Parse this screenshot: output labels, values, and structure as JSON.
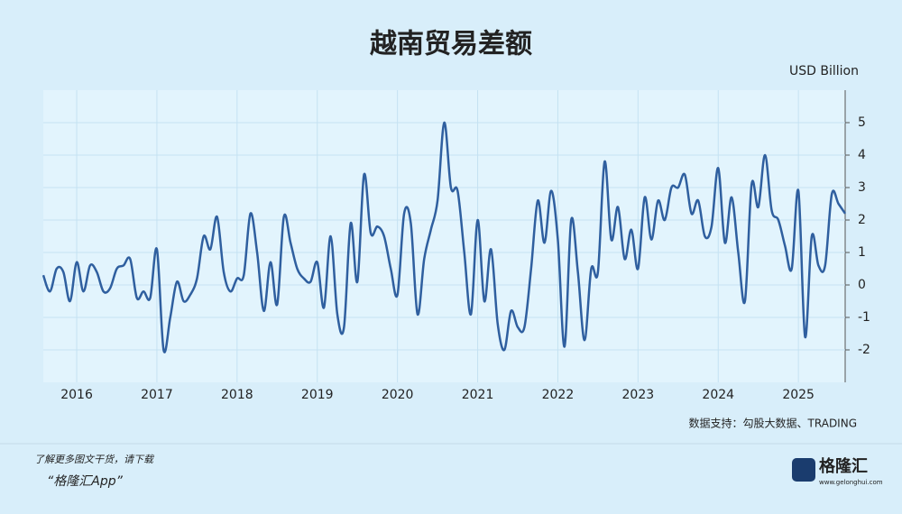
{
  "chart_data": {
    "type": "line",
    "title": "越南贸易差额",
    "y_axis_label": "USD Billion",
    "source": "数据支持：勾股大数据、TRADING",
    "footer_text": "了解更多图文干货，请下载",
    "footer_app": "“格隆汇App”",
    "logo": "格隆汇",
    "logo_url": "www.gelonghui.com",
    "categories": [
      null,
      null,
      null,
      null,
      null,
      "2016",
      null,
      null,
      null,
      null,
      null,
      null,
      null,
      null,
      null,
      null,
      null,
      "2017",
      null,
      null,
      null,
      null,
      null,
      null,
      null,
      null,
      null,
      null,
      null,
      "2018",
      null,
      null,
      null,
      null,
      null,
      null,
      null,
      null,
      null,
      null,
      null,
      "2019",
      null,
      null,
      null,
      null,
      null,
      null,
      null,
      null,
      null,
      null,
      null,
      "2020",
      null,
      null,
      null,
      null,
      null,
      null,
      null,
      null,
      null,
      null,
      null,
      "2021",
      null,
      null,
      null,
      null,
      null,
      null,
      null,
      null,
      null,
      null,
      null,
      "2022",
      null,
      null,
      null,
      null,
      null,
      null,
      null,
      null,
      null,
      null,
      null,
      "2023",
      null,
      null,
      null,
      null,
      null,
      null,
      null,
      null,
      null,
      null,
      null,
      "2024",
      null,
      null,
      null,
      null,
      null,
      null,
      null,
      null,
      null,
      null,
      null,
      "2025",
      null,
      null,
      null,
      null,
      null,
      null,
      null
    ],
    "series": [
      {
        "name": "越南贸易差额",
        "color": "#2f5f9f",
        "values": [
          0.3,
          -0.2,
          0.5,
          0.4,
          -0.5,
          0.7,
          -0.2,
          0.6,
          0.4,
          -0.2,
          -0.1,
          0.5,
          0.6,
          0.8,
          -0.4,
          -0.2,
          -0.4,
          1.1,
          -2.0,
          -1.0,
          0.1,
          -0.5,
          -0.3,
          0.2,
          1.5,
          1.1,
          2.1,
          0.4,
          -0.2,
          0.2,
          0.3,
          2.2,
          1.0,
          -0.8,
          0.7,
          -0.6,
          2.1,
          1.3,
          0.5,
          0.2,
          0.1,
          0.7,
          -0.7,
          1.5,
          -0.9,
          -1.3,
          1.9,
          0.1,
          3.4,
          1.6,
          1.8,
          1.5,
          0.5,
          -0.3,
          2.2,
          1.9,
          -0.9,
          0.8,
          1.7,
          2.6,
          5.0,
          3.0,
          2.9,
          1.0,
          -0.9,
          2.0,
          -0.5,
          1.1,
          -1.2,
          -2.0,
          -0.8,
          -1.3,
          -1.3,
          0.5,
          2.6,
          1.3,
          2.9,
          1.4,
          -1.9,
          2.0,
          0.4,
          -1.7,
          0.5,
          0.4,
          3.8,
          1.4,
          2.4,
          0.8,
          1.7,
          0.5,
          2.7,
          1.4,
          2.6,
          2.0,
          3.0,
          3.0,
          3.4,
          2.2,
          2.6,
          1.5,
          1.8,
          3.6,
          1.3,
          2.7,
          1.0,
          -0.5,
          3.1,
          2.4,
          4.0,
          2.3,
          2.0,
          1.2,
          0.5,
          2.9,
          -1.6,
          1.5,
          0.6,
          0.6,
          2.8,
          2.5,
          2.2
        ]
      }
    ],
    "ylim": [
      -3,
      6
    ],
    "yticks": [
      -2,
      -1,
      0,
      1,
      2,
      3,
      4,
      5
    ],
    "grid": true
  }
}
